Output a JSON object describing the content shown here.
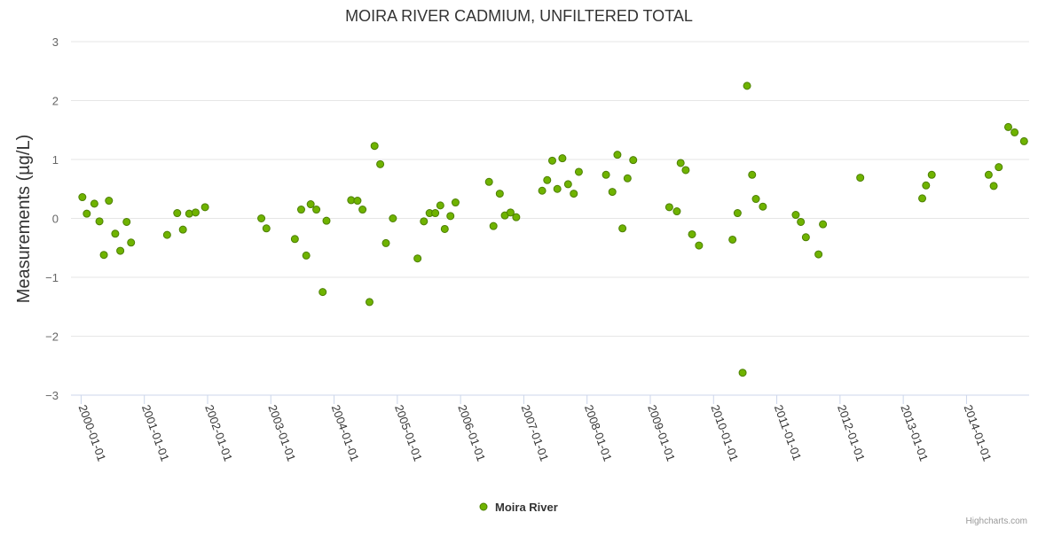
{
  "colors": {
    "series_fill": "#6fb300",
    "series_stroke": "#4c7f00",
    "grid": "#e6e6e6",
    "axis_line": "#ccd6eb",
    "title": "#333333",
    "tick_label": "#666666"
  },
  "credits": "Highcharts.com",
  "chart_data": {
    "type": "scatter",
    "title": "MOIRA RIVER CADMIUM, UNFILTERED TOTAL",
    "xlabel": "",
    "ylabel": "Measurements (µg/L)",
    "ylim": [
      -3,
      3
    ],
    "yticks": [
      "3",
      "2",
      "1",
      "0",
      "−1",
      "−2",
      "−3"
    ],
    "ytick_values": [
      3,
      2,
      1,
      0,
      -1,
      -2,
      -3
    ],
    "xlim": [
      1999.84,
      2014.99
    ],
    "xticks": [
      "2000-01-01",
      "2001-01-01",
      "2002-01-01",
      "2003-01-01",
      "2004-01-01",
      "2005-01-01",
      "2006-01-01",
      "2007-01-01",
      "2008-01-01",
      "2009-01-01",
      "2010-01-01",
      "2011-01-01",
      "2012-01-01",
      "2013-01-01",
      "2014-01-01"
    ],
    "xtick_values": [
      2000,
      2001,
      2002,
      2003,
      2004,
      2005,
      2006,
      2007,
      2008,
      2009,
      2010,
      2011,
      2012,
      2013,
      2014
    ],
    "legend": {
      "position": "bottom-center",
      "entries": [
        "Moira River"
      ]
    },
    "series": [
      {
        "name": "Moira River",
        "points": [
          [
            2000.02,
            0.36
          ],
          [
            2000.09,
            0.08
          ],
          [
            2000.21,
            0.25
          ],
          [
            2000.29,
            -0.05
          ],
          [
            2000.36,
            -0.62
          ],
          [
            2000.44,
            0.3
          ],
          [
            2000.54,
            -0.26
          ],
          [
            2000.62,
            -0.55
          ],
          [
            2000.72,
            -0.06
          ],
          [
            2000.79,
            -0.41
          ],
          [
            2001.36,
            -0.28
          ],
          [
            2001.52,
            0.09
          ],
          [
            2001.61,
            -0.19
          ],
          [
            2001.71,
            0.08
          ],
          [
            2001.81,
            0.1
          ],
          [
            2001.96,
            0.19
          ],
          [
            2002.85,
            0.0
          ],
          [
            2002.93,
            -0.17
          ],
          [
            2003.38,
            -0.35
          ],
          [
            2003.48,
            0.15
          ],
          [
            2003.56,
            -0.63
          ],
          [
            2003.63,
            0.24
          ],
          [
            2003.72,
            0.15
          ],
          [
            2003.82,
            -1.25
          ],
          [
            2003.88,
            -0.04
          ],
          [
            2004.27,
            0.31
          ],
          [
            2004.37,
            0.3
          ],
          [
            2004.45,
            0.15
          ],
          [
            2004.56,
            -1.42
          ],
          [
            2004.64,
            1.23
          ],
          [
            2004.73,
            0.92
          ],
          [
            2004.82,
            -0.42
          ],
          [
            2004.93,
            0.0
          ],
          [
            2005.32,
            -0.68
          ],
          [
            2005.42,
            -0.05
          ],
          [
            2005.51,
            0.09
          ],
          [
            2005.6,
            0.09
          ],
          [
            2005.68,
            0.22
          ],
          [
            2005.75,
            -0.18
          ],
          [
            2005.84,
            0.04
          ],
          [
            2005.92,
            0.27
          ],
          [
            2006.45,
            0.62
          ],
          [
            2006.52,
            -0.13
          ],
          [
            2006.62,
            0.42
          ],
          [
            2006.7,
            0.05
          ],
          [
            2006.79,
            0.1
          ],
          [
            2006.88,
            0.02
          ],
          [
            2007.29,
            0.47
          ],
          [
            2007.37,
            0.65
          ],
          [
            2007.45,
            0.98
          ],
          [
            2007.53,
            0.5
          ],
          [
            2007.61,
            1.02
          ],
          [
            2007.7,
            0.58
          ],
          [
            2007.79,
            0.42
          ],
          [
            2007.87,
            0.79
          ],
          [
            2008.3,
            0.74
          ],
          [
            2008.4,
            0.45
          ],
          [
            2008.48,
            1.08
          ],
          [
            2008.56,
            -0.17
          ],
          [
            2008.64,
            0.68
          ],
          [
            2008.73,
            0.99
          ],
          [
            2009.3,
            0.19
          ],
          [
            2009.42,
            0.12
          ],
          [
            2009.48,
            0.94
          ],
          [
            2009.56,
            0.82
          ],
          [
            2009.66,
            -0.27
          ],
          [
            2009.77,
            -0.46
          ],
          [
            2010.3,
            -0.36
          ],
          [
            2010.38,
            0.09
          ],
          [
            2010.46,
            -2.62
          ],
          [
            2010.53,
            2.25
          ],
          [
            2010.61,
            0.74
          ],
          [
            2010.67,
            0.33
          ],
          [
            2010.78,
            0.2
          ],
          [
            2011.3,
            0.06
          ],
          [
            2011.38,
            -0.06
          ],
          [
            2011.46,
            -0.32
          ],
          [
            2011.66,
            -0.61
          ],
          [
            2011.73,
            -0.1
          ],
          [
            2012.32,
            0.69
          ],
          [
            2013.3,
            0.34
          ],
          [
            2013.36,
            0.56
          ],
          [
            2013.45,
            0.74
          ],
          [
            2014.35,
            0.74
          ],
          [
            2014.43,
            0.55
          ],
          [
            2014.51,
            0.87
          ],
          [
            2014.66,
            1.55
          ],
          [
            2014.76,
            1.46
          ],
          [
            2014.91,
            1.31
          ]
        ]
      }
    ]
  }
}
